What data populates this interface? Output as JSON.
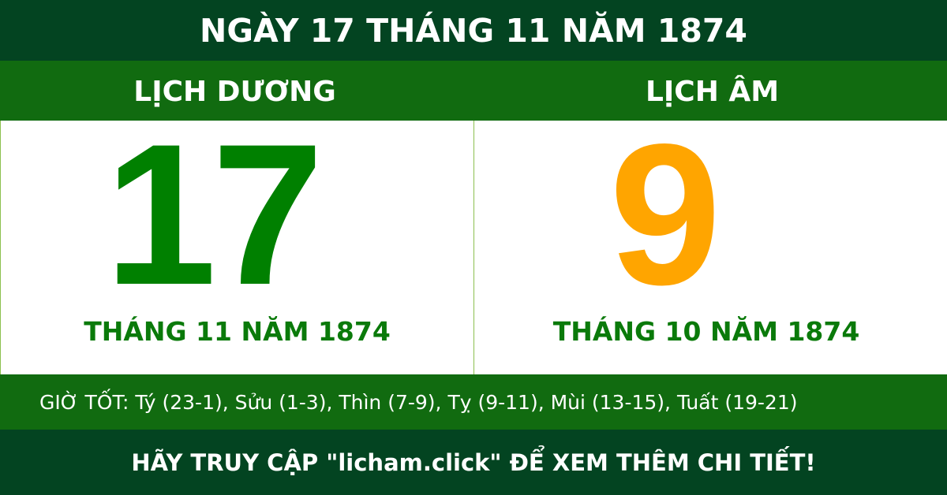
{
  "title": "NGÀY 17 THÁNG 11 NĂM 1874",
  "solar": {
    "heading": "LỊCH DƯƠNG",
    "day": "17",
    "month_year": "THÁNG 11 NĂM 1874"
  },
  "lunar": {
    "heading": "LỊCH ÂM",
    "day": "9",
    "month_year": "THÁNG 10 NĂM 1874"
  },
  "good_hours": "GIỜ TỐT: Tý (23-1), Sửu (1-3), Thìn (7-9), Tỵ (9-11), Mùi (13-15), Tuất (19-21)",
  "footer": "HÃY TRUY CẬP \"licham.click\" ĐỂ XEM THÊM CHI TIẾT!",
  "colors": {
    "dark_green": "#034421",
    "green": "#116b10",
    "solar_day": "#008000",
    "lunar_day": "#ffa500"
  }
}
